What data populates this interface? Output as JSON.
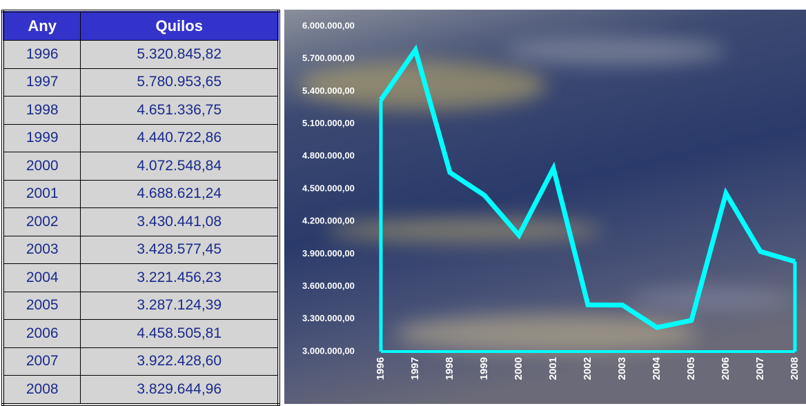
{
  "table": {
    "header": [
      "Any",
      "Quilos"
    ],
    "rows": [
      [
        "1996",
        "5.320.845,82"
      ],
      [
        "1997",
        "5.780.953,65"
      ],
      [
        "1998",
        "4.651.336,75"
      ],
      [
        "1999",
        "4.440.722,86"
      ],
      [
        "2000",
        "4.072.548,84"
      ],
      [
        "2001",
        "4.688.621,24"
      ],
      [
        "2002",
        "3.430.441,08"
      ],
      [
        "2003",
        "3.428.577,45"
      ],
      [
        "2004",
        "3.221.456,23"
      ],
      [
        "2005",
        "3.287.124,39"
      ],
      [
        "2006",
        "4.458.505,81"
      ],
      [
        "2007",
        "3.922.428,60"
      ],
      [
        "2008",
        "3.829.644,96"
      ]
    ]
  },
  "chart_data": {
    "type": "area",
    "categories": [
      "1996",
      "1997",
      "1998",
      "1999",
      "2000",
      "2001",
      "2002",
      "2003",
      "2004",
      "2005",
      "2006",
      "2007",
      "2008"
    ],
    "values": [
      5320845.82,
      5780953.65,
      4651336.75,
      4440722.86,
      4072548.84,
      4688621.24,
      3430441.08,
      3428577.45,
      3221456.23,
      3287124.39,
      4458505.81,
      3922428.6,
      3829644.96
    ],
    "color": "#00ffff",
    "ylim": [
      3000000,
      6000000
    ],
    "yticks": [
      {
        "value": 3000000,
        "label": "3.000.000,00"
      },
      {
        "value": 3300000,
        "label": "3.300.000,00"
      },
      {
        "value": 3600000,
        "label": "3.600.000,00"
      },
      {
        "value": 3900000,
        "label": "3.900.000,00"
      },
      {
        "value": 4200000,
        "label": "4.200.000,00"
      },
      {
        "value": 4500000,
        "label": "4.500.000,00"
      },
      {
        "value": 4800000,
        "label": "4.800.000,00"
      },
      {
        "value": 5100000,
        "label": "5.100.000,00"
      },
      {
        "value": 5400000,
        "label": "5.400.000,00"
      },
      {
        "value": 5700000,
        "label": "5.700.000,00"
      },
      {
        "value": 6000000,
        "label": "6.000.000,00"
      }
    ]
  }
}
